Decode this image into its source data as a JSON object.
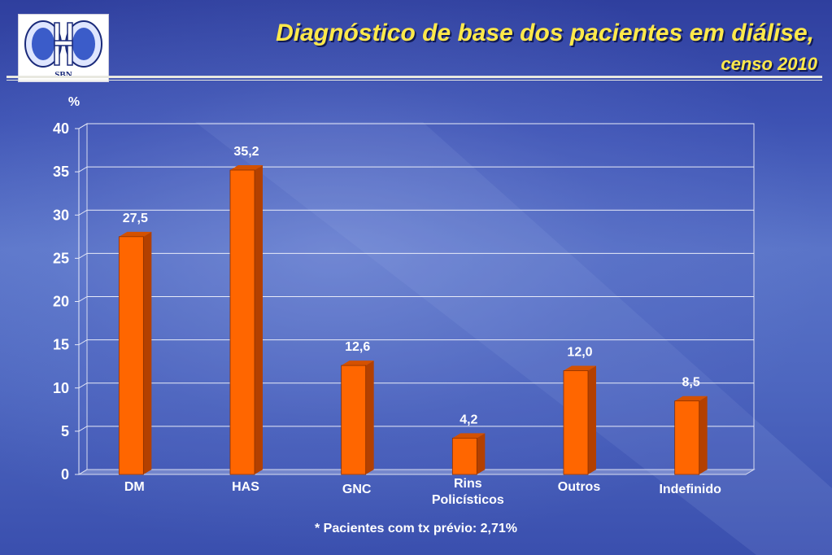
{
  "logo": {
    "text": "SBN",
    "colors": {
      "kidney": "#3b5cc9",
      "outline": "#1a2a7a"
    }
  },
  "header": {
    "title": "Diagnóstico de base dos pacientes em diálise,",
    "subtitle": "censo 2010"
  },
  "footnote": "* Pacientes com tx prévio: 2,71%",
  "colors": {
    "bar_front": "#ff6600",
    "bar_side": "#b34000",
    "bar_top": "#d45100",
    "title": "#ffe94a"
  },
  "chart_data": {
    "type": "bar",
    "title": "",
    "ylabel": "%",
    "xlabel": "",
    "ylim": [
      0,
      40
    ],
    "yticks": [
      0,
      5,
      10,
      15,
      20,
      25,
      30,
      35,
      40
    ],
    "grid": true,
    "legend": "none",
    "categories": [
      [
        "DM"
      ],
      [
        "HAS"
      ],
      [
        "GNC"
      ],
      [
        "Rins",
        "Policísticos"
      ],
      [
        "Outros"
      ],
      [
        "Indefinido"
      ]
    ],
    "values": [
      27.5,
      35.2,
      12.6,
      4.2,
      12.0,
      8.5
    ],
    "value_labels": [
      "27,5",
      "35,2",
      "12,6",
      "4,2",
      "12,0",
      "8,5"
    ]
  }
}
